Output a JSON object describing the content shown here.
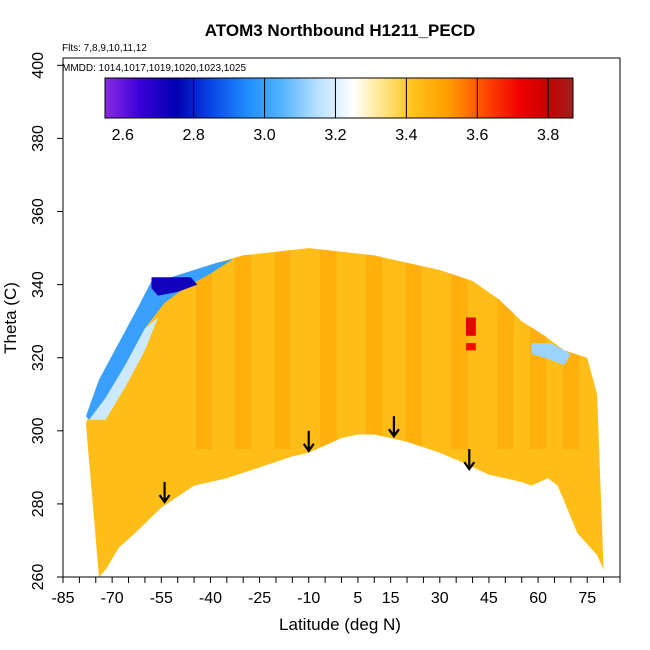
{
  "chart_data": {
    "type": "heatmap",
    "title": "ATOM3 Northbound H1211_PECD",
    "subtitle": "Flts: 7,8,9,10,11,12",
    "annotation": "MMDD: 1014,1017,1019,1020,1023,1025",
    "xlabel": "Latitude (deg N)",
    "ylabel": "Theta (C)",
    "xlim": [
      -85,
      85
    ],
    "ylim": [
      260,
      402
    ],
    "x_ticks": [
      -85,
      -70,
      -55,
      -40,
      -25,
      -10,
      5,
      15,
      30,
      45,
      60,
      75
    ],
    "x_tick_labels": [
      "-85",
      "-70",
      "-55",
      "-40",
      "-25",
      "-10",
      "5",
      "15",
      "30",
      "45",
      "60",
      "75"
    ],
    "x_minor_step": 5,
    "y_ticks": [
      260,
      280,
      300,
      320,
      340,
      360,
      380,
      400
    ],
    "y_tick_labels": [
      "260",
      "280",
      "300",
      "320",
      "340",
      "360",
      "380",
      "400"
    ],
    "colorbar": {
      "range": [
        2.55,
        3.87
      ],
      "ticks": [
        2.6,
        2.8,
        3.0,
        3.2,
        3.4,
        3.6,
        3.8
      ],
      "tick_labels": [
        "2.6",
        "2.8",
        "3.0",
        "3.2",
        "3.4",
        "3.6",
        "3.8"
      ],
      "divisions": [
        2.8,
        3.0,
        3.2,
        3.4,
        3.6,
        3.8
      ],
      "stops": [
        {
          "v": 2.55,
          "c": "#8a2be2"
        },
        {
          "v": 2.65,
          "c": "#3a00d8"
        },
        {
          "v": 2.75,
          "c": "#0000b0"
        },
        {
          "v": 2.85,
          "c": "#0a46e6"
        },
        {
          "v": 2.95,
          "c": "#1e8cff"
        },
        {
          "v": 3.05,
          "c": "#55b4ff"
        },
        {
          "v": 3.15,
          "c": "#b8e0ff"
        },
        {
          "v": 3.25,
          "c": "#ffffff"
        },
        {
          "v": 3.33,
          "c": "#ffe68a"
        },
        {
          "v": 3.42,
          "c": "#ffc21a"
        },
        {
          "v": 3.52,
          "c": "#ff9c00"
        },
        {
          "v": 3.62,
          "c": "#ff4a00"
        },
        {
          "v": 3.72,
          "c": "#f00000"
        },
        {
          "v": 3.8,
          "c": "#c80000"
        },
        {
          "v": 3.87,
          "c": "#a02020"
        }
      ]
    },
    "coverage_upper_boundary": [
      [
        -78,
        302
      ],
      [
        -74,
        312
      ],
      [
        -68,
        322
      ],
      [
        -62,
        332
      ],
      [
        -58,
        341
      ],
      [
        -52,
        342
      ],
      [
        -45,
        344
      ],
      [
        -38,
        346
      ],
      [
        -30,
        348
      ],
      [
        -20,
        349
      ],
      [
        -10,
        350
      ],
      [
        0,
        349
      ],
      [
        10,
        348
      ],
      [
        20,
        346
      ],
      [
        30,
        344
      ],
      [
        40,
        341
      ],
      [
        48,
        336
      ],
      [
        55,
        330
      ],
      [
        62,
        326
      ],
      [
        68,
        322
      ],
      [
        75,
        320
      ],
      [
        78,
        310
      ]
    ],
    "coverage_lower_boundary": [
      [
        80,
        262
      ],
      [
        78,
        266
      ],
      [
        72,
        272
      ],
      [
        66,
        285
      ],
      [
        63,
        287
      ],
      [
        58,
        285
      ],
      [
        55,
        286
      ],
      [
        50,
        287
      ],
      [
        45,
        288
      ],
      [
        38,
        291
      ],
      [
        30,
        294
      ],
      [
        20,
        297
      ],
      [
        15,
        298
      ],
      [
        10,
        299
      ],
      [
        5,
        299
      ],
      [
        0,
        298
      ],
      [
        -5,
        296
      ],
      [
        -10,
        294
      ],
      [
        -15,
        293
      ],
      [
        -25,
        290
      ],
      [
        -35,
        287
      ],
      [
        -45,
        285
      ],
      [
        -55,
        279
      ],
      [
        -63,
        272
      ],
      [
        -68,
        268
      ],
      [
        -72,
        262
      ],
      [
        -74,
        260
      ]
    ],
    "colored_regions": [
      {
        "name": "polar blue tongue",
        "value": 3.0,
        "points": [
          [
            -78,
            304
          ],
          [
            -74,
            314
          ],
          [
            -68,
            324
          ],
          [
            -62,
            334
          ],
          [
            -58,
            341
          ],
          [
            -52,
            342
          ],
          [
            -45,
            344
          ],
          [
            -38,
            346
          ],
          [
            -33,
            347
          ],
          [
            -40,
            343
          ],
          [
            -48,
            339
          ],
          [
            -54,
            335
          ],
          [
            -60,
            328
          ],
          [
            -66,
            318
          ],
          [
            -72,
            309
          ],
          [
            -77,
            303
          ]
        ]
      },
      {
        "name": "deep blue core",
        "value": 2.72,
        "points": [
          [
            -58,
            342
          ],
          [
            -52,
            342
          ],
          [
            -46,
            342
          ],
          [
            -44,
            340
          ],
          [
            -50,
            338
          ],
          [
            -56,
            337
          ],
          [
            -58,
            339
          ]
        ]
      },
      {
        "name": "light blue margin",
        "value": 3.18,
        "points": [
          [
            -77,
            303
          ],
          [
            -72,
            309
          ],
          [
            -66,
            318
          ],
          [
            -60,
            328
          ],
          [
            -56,
            331
          ],
          [
            -60,
            322
          ],
          [
            -66,
            312
          ],
          [
            -72,
            303
          ]
        ]
      },
      {
        "name": "light blue 60N",
        "value": 3.12,
        "points": [
          [
            58,
            324
          ],
          [
            64,
            324
          ],
          [
            70,
            321
          ],
          [
            68,
            318
          ],
          [
            62,
            320
          ],
          [
            58,
            321
          ]
        ]
      },
      {
        "name": "red patch 40N",
        "value": 3.74,
        "points": [
          [
            38,
            331
          ],
          [
            41,
            331
          ],
          [
            41,
            326
          ],
          [
            38,
            326
          ]
        ]
      },
      {
        "name": "red patch 40N low",
        "value": 3.7,
        "points": [
          [
            38,
            324
          ],
          [
            41,
            324
          ],
          [
            41,
            322
          ],
          [
            38,
            322
          ]
        ]
      }
    ],
    "darker_bands_lat": [
      -42,
      -30,
      -18,
      -4,
      10,
      22,
      36,
      50,
      60,
      70
    ],
    "arrows_lat_theta": [
      [
        -54,
        286
      ],
      [
        -10,
        300
      ],
      [
        16,
        304
      ],
      [
        39,
        295
      ]
    ]
  }
}
